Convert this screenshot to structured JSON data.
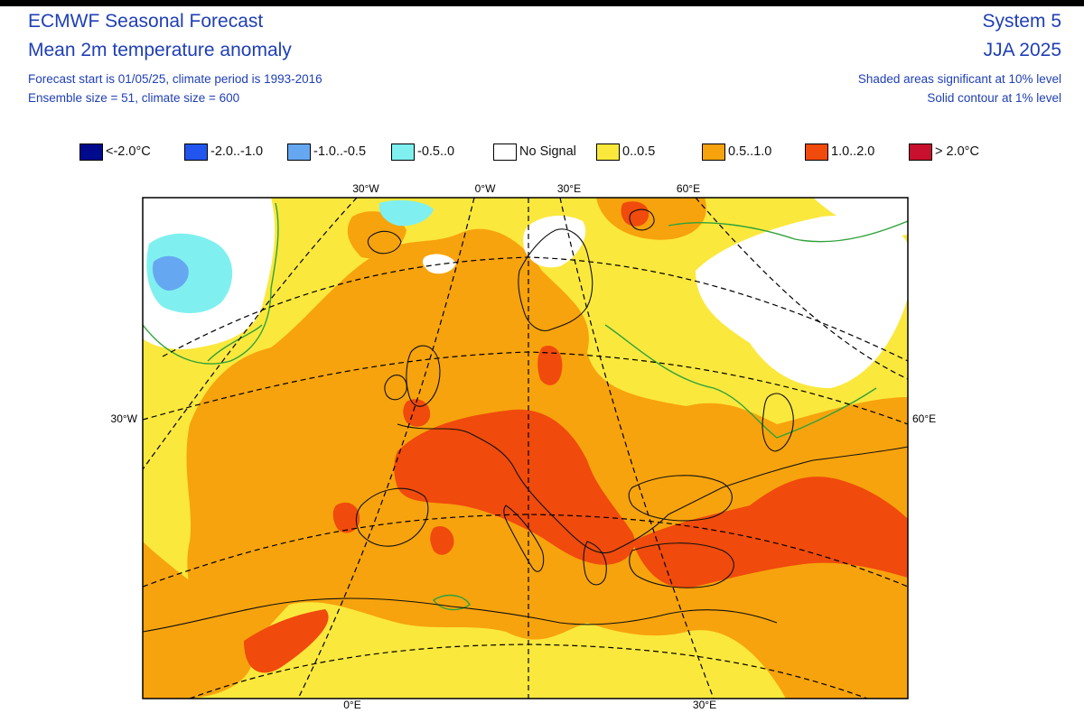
{
  "header": {
    "title": "ECMWF Seasonal Forecast",
    "subtitle": "Mean 2m temperature anomaly",
    "info_line1": "Forecast start is 01/05/25, climate period is 1993-2016",
    "info_line2": "Ensemble size = 51, climate size = 600",
    "system": "System 5",
    "season": "JJA 2025",
    "significance_line1": "Shaded areas significant at 10% level",
    "significance_line2": "Solid contour at 1% level"
  },
  "legend": [
    {
      "label": "<-2.0°C",
      "color": "#000a8c"
    },
    {
      "label": "-2.0..-1.0",
      "color": "#2255ee"
    },
    {
      "label": "-1.0..-0.5",
      "color": "#66a7f2"
    },
    {
      "label": "-0.5..0",
      "color": "#7ff0ef"
    },
    {
      "label": "No Signal",
      "color": "#ffffff"
    },
    {
      "label": "0..0.5",
      "color": "#fbe83d"
    },
    {
      "label": "0.5..1.0",
      "color": "#f7a30d"
    },
    {
      "label": "1.0..2.0",
      "color": "#f04a0c"
    },
    {
      "label": "> 2.0°C",
      "color": "#c8102e"
    }
  ],
  "map": {
    "region": "Europe",
    "top_labels": [
      "30°W",
      "0°W",
      "30°E",
      "60°E"
    ],
    "left_label": "30°W",
    "right_label": "60°E",
    "bottom_labels": [
      "0°E",
      "30°E"
    ],
    "colors": {
      "no_signal": "#ffffff",
      "weak_warm": "#fbe83d",
      "moderate_warm": "#f7a30d",
      "strong_warm": "#f04a0c",
      "weak_cool": "#7ff0ef",
      "moderate_cool": "#66a7f2",
      "contour": "#2ea23a",
      "coast": "#111111"
    }
  }
}
